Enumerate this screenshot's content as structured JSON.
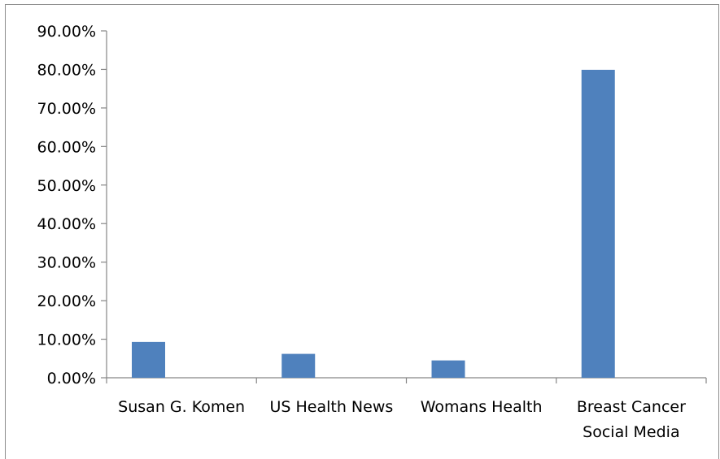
{
  "chart_data": {
    "type": "bar",
    "categories": [
      [
        "Susan G. Komen"
      ],
      [
        "US Health News"
      ],
      [
        "Womans Health"
      ],
      [
        "Breast Cancer",
        "Social Media"
      ]
    ],
    "values": [
      9.3,
      6.2,
      4.5,
      79.9
    ],
    "ylim": [
      0,
      90
    ],
    "yticks": [
      "0.00%",
      "10.00%",
      "20.00%",
      "30.00%",
      "40.00%",
      "50.00%",
      "60.00%",
      "70.00%",
      "80.00%",
      "90.00%"
    ],
    "bar_color": "#4f81bd",
    "grid": false,
    "legend": "none",
    "title": "",
    "xlabel": "",
    "ylabel": ""
  }
}
